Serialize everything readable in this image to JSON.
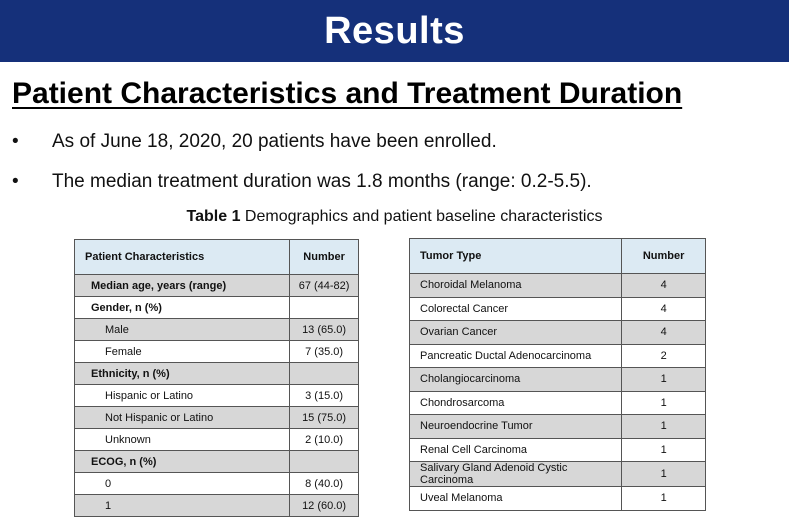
{
  "banner": {
    "title": "Results"
  },
  "section": {
    "title": "Patient Characteristics and Treatment Duration"
  },
  "bullets": [
    {
      "marker": "•",
      "text": "As of June 18, 2020, 20 patients have been enrolled."
    },
    {
      "marker": "•",
      "text": "The median treatment duration was 1.8 months (range: 0.2-5.5)."
    }
  ],
  "table_caption": {
    "label": "Table 1",
    "text": " Demographics and patient baseline characteristics"
  },
  "table_left": {
    "headers": [
      "Patient Characteristics",
      "Number"
    ],
    "rows": [
      {
        "label": "Median age, years (range)",
        "value": "67 (44-82)"
      },
      {
        "label": "Gender, n (%)",
        "value": ""
      },
      {
        "label": "Male",
        "value": "13 (65.0)"
      },
      {
        "label": "Female",
        "value": "7 (35.0)"
      },
      {
        "label": "Ethnicity, n (%)",
        "value": ""
      },
      {
        "label": "Hispanic or Latino",
        "value": "3 (15.0)"
      },
      {
        "label": "Not Hispanic or Latino",
        "value": "15 (75.0)"
      },
      {
        "label": "Unknown",
        "value": "2 (10.0)"
      },
      {
        "label": "ECOG, n (%)",
        "value": ""
      },
      {
        "label": "0",
        "value": "8 (40.0)"
      },
      {
        "label": "1",
        "value": "12 (60.0)"
      }
    ]
  },
  "table_right": {
    "headers": [
      "Tumor Type",
      "Number"
    ],
    "rows": [
      {
        "label": "Choroidal Melanoma",
        "value": "4"
      },
      {
        "label": "Colorectal Cancer",
        "value": "4"
      },
      {
        "label": "Ovarian Cancer",
        "value": "4"
      },
      {
        "label": "Pancreatic Ductal Adenocarcinoma",
        "value": "2"
      },
      {
        "label": "Cholangiocarcinoma",
        "value": "1"
      },
      {
        "label": "Chondrosarcoma",
        "value": "1"
      },
      {
        "label": "Neuroendocrine Tumor",
        "value": "1"
      },
      {
        "label": "Renal Cell Carcinoma",
        "value": "1"
      },
      {
        "label": "Salivary Gland Adenoid Cystic Carcinoma",
        "value": "1"
      },
      {
        "label": "Uveal Melanoma",
        "value": "1"
      }
    ]
  },
  "colors": {
    "banner_bg": "#15307a",
    "header_bg": "#dceaf3",
    "shaded_row": "#d7d7d7"
  }
}
